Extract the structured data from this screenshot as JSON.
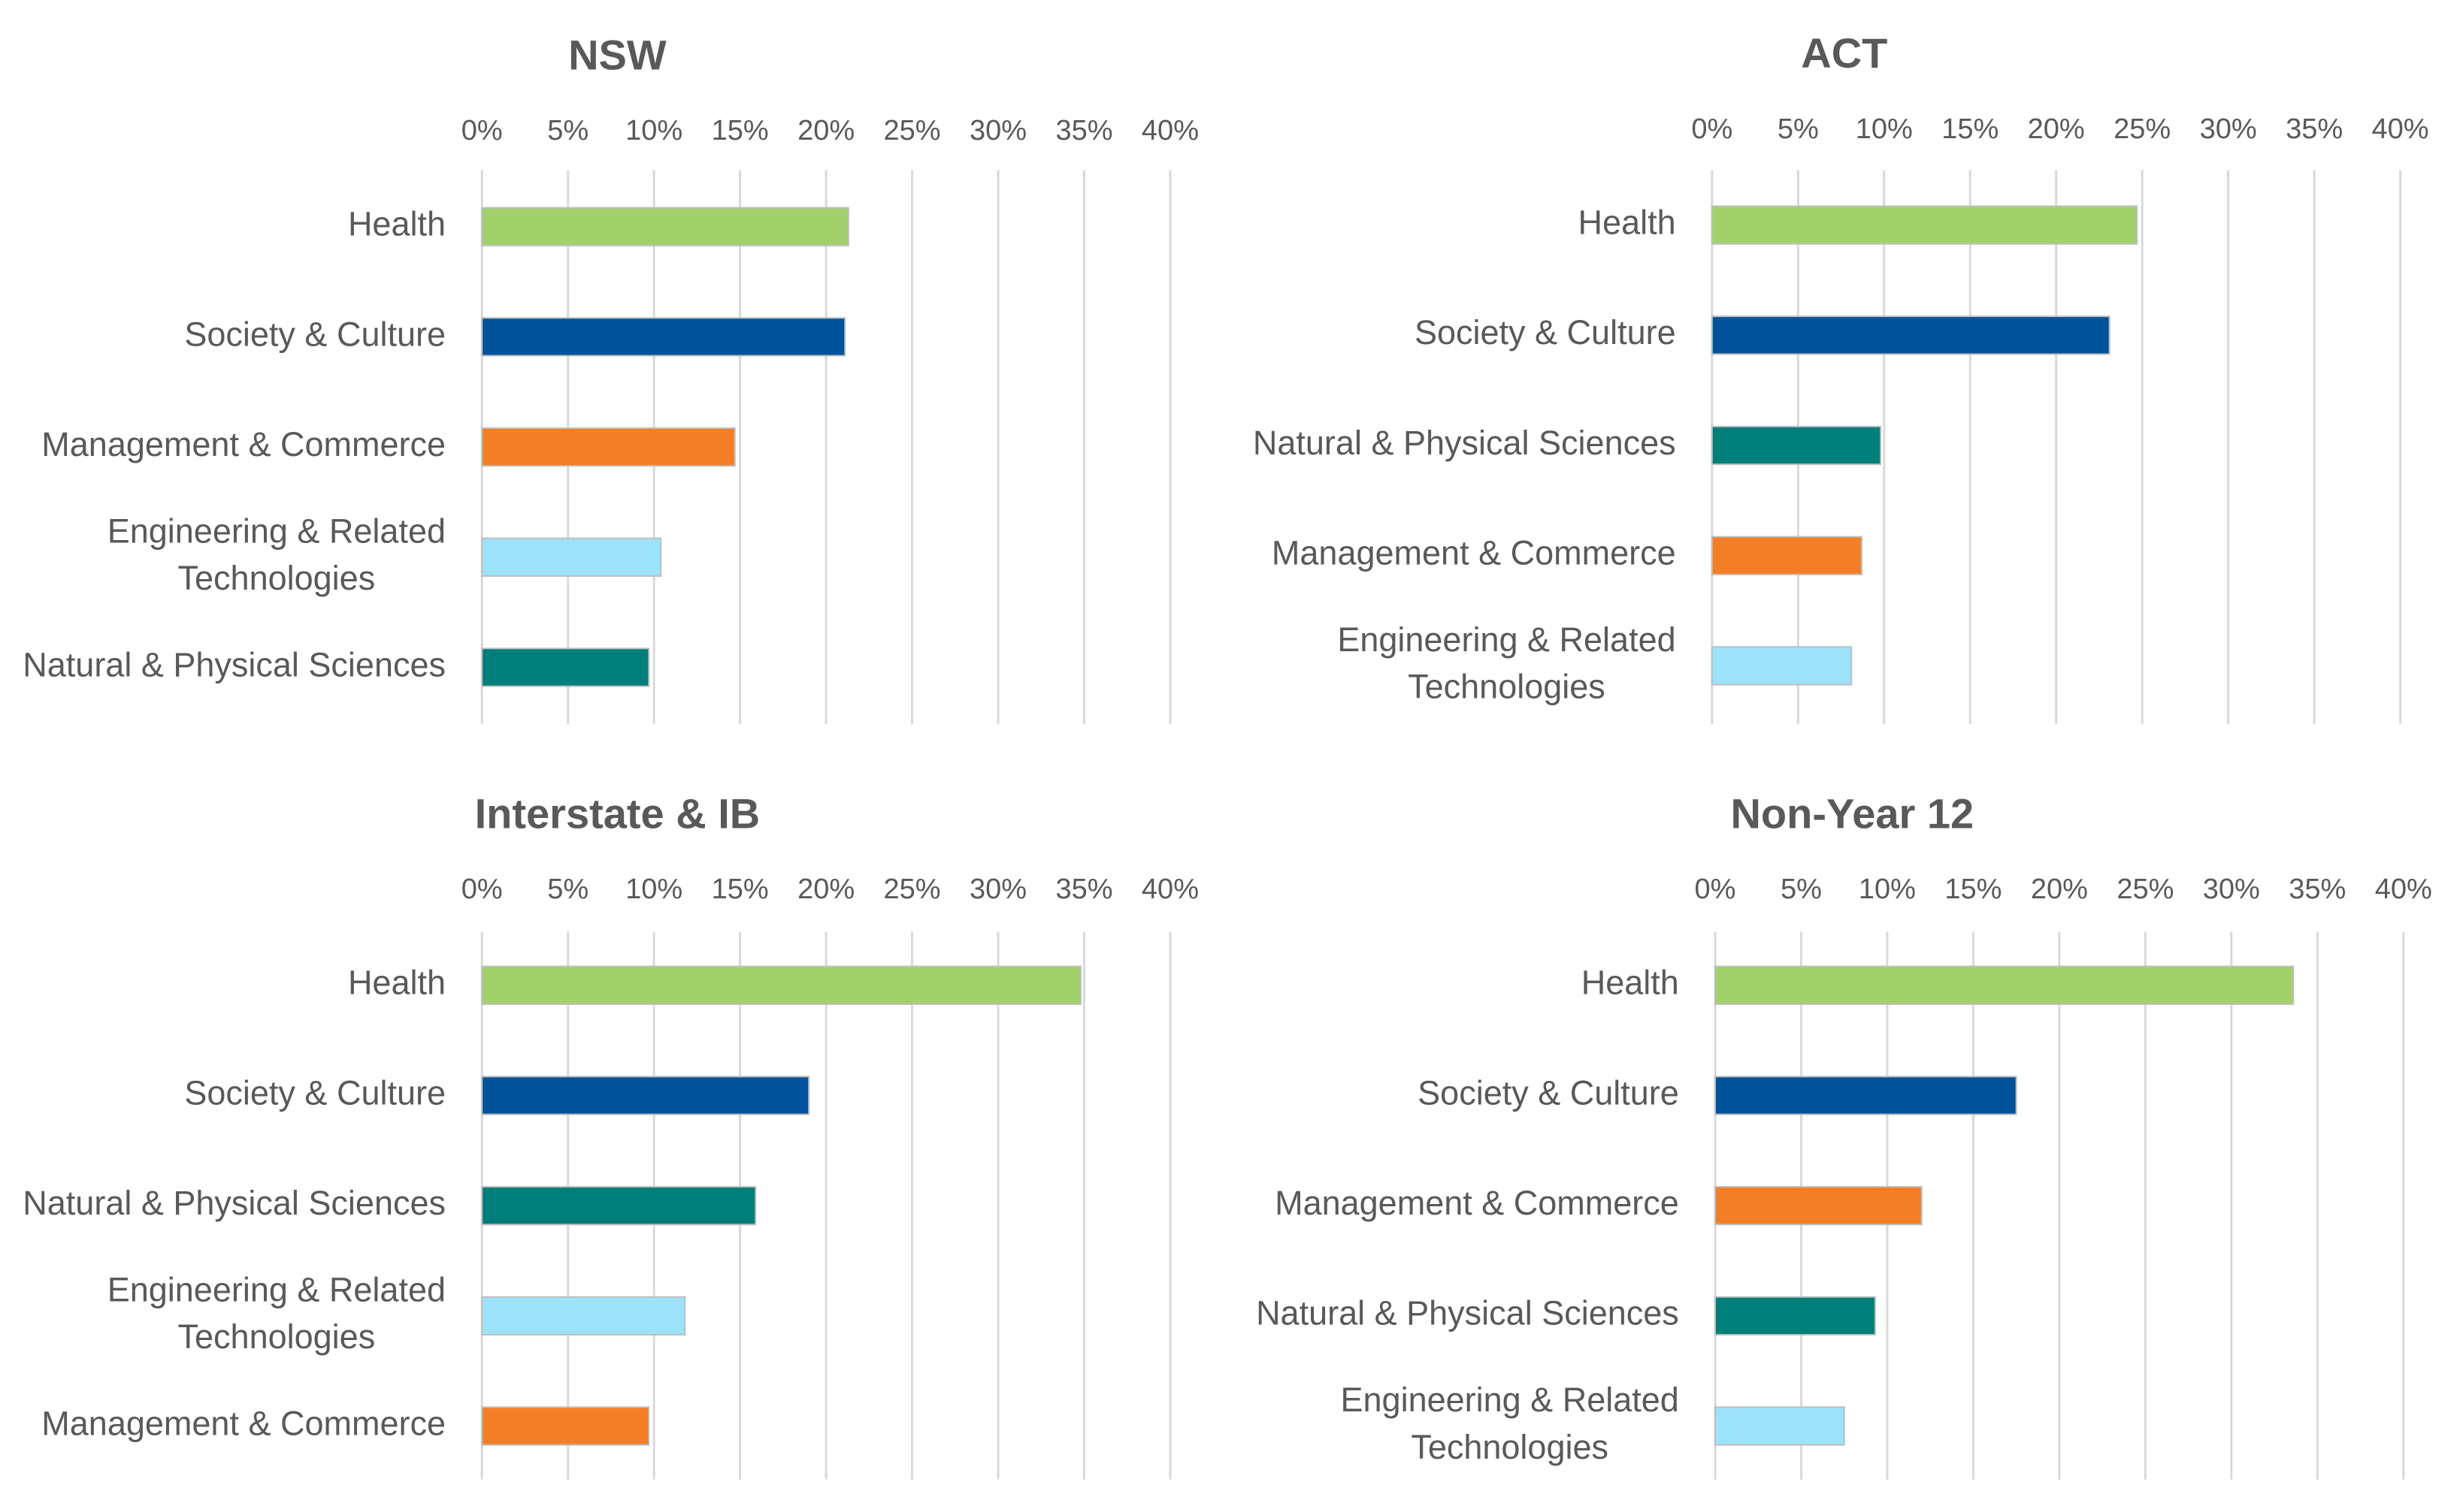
{
  "chart_data": [
    {
      "type": "bar",
      "orientation": "horizontal",
      "title": "NSW",
      "categories": [
        "Health",
        "Society & Culture",
        "Management & Commerce",
        "Engineering & Related Technologies",
        "Natural & Physical Sciences"
      ],
      "category_lines": [
        [
          "Health"
        ],
        [
          "Society & Culture"
        ],
        [
          "Management & Commerce"
        ],
        [
          "Engineering & Related",
          "Technologies"
        ],
        [
          "Natural & Physical Sciences"
        ]
      ],
      "values": [
        21.3,
        21.1,
        14.7,
        10.4,
        9.7
      ],
      "bar_colors": [
        "#a2d16c",
        "#00529b",
        "#f47e26",
        "#9ce2fb",
        "#007e7a"
      ],
      "xlim": [
        0,
        40
      ],
      "xticks": [
        "0%",
        "5%",
        "10%",
        "15%",
        "20%",
        "25%",
        "30%",
        "35%",
        "40%"
      ],
      "axis_position": "top",
      "grid": true,
      "legend": false
    },
    {
      "type": "bar",
      "orientation": "horizontal",
      "title": "ACT",
      "categories": [
        "Health",
        "Society & Culture",
        "Natural & Physical Sciences",
        "Management & Commerce",
        "Engineering & Related Technologies"
      ],
      "category_lines": [
        [
          "Health"
        ],
        [
          "Society & Culture"
        ],
        [
          "Natural & Physical Sciences"
        ],
        [
          "Management & Commerce"
        ],
        [
          "Engineering & Related",
          "Technologies"
        ]
      ],
      "values": [
        24.7,
        23.1,
        9.8,
        8.7,
        8.1
      ],
      "bar_colors": [
        "#a2d16c",
        "#00529b",
        "#007e7a",
        "#f47e26",
        "#9ce2fb"
      ],
      "xlim": [
        0,
        40
      ],
      "xticks": [
        "0%",
        "5%",
        "10%",
        "15%",
        "20%",
        "25%",
        "30%",
        "35%",
        "40%"
      ],
      "axis_position": "top",
      "grid": true,
      "legend": false
    },
    {
      "type": "bar",
      "orientation": "horizontal",
      "title": "Interstate & IB",
      "categories": [
        "Health",
        "Society & Culture",
        "Natural & Physical Sciences",
        "Engineering & Related Technologies",
        "Management & Commerce"
      ],
      "category_lines": [
        [
          "Health"
        ],
        [
          "Society & Culture"
        ],
        [
          "Natural & Physical Sciences"
        ],
        [
          "Engineering & Related",
          "Technologies"
        ],
        [
          "Management & Commerce"
        ]
      ],
      "values": [
        34.8,
        19.0,
        15.9,
        11.8,
        9.7
      ],
      "bar_colors": [
        "#a2d16c",
        "#00529b",
        "#007e7a",
        "#9ce2fb",
        "#f47e26"
      ],
      "xlim": [
        0,
        40
      ],
      "xticks": [
        "0%",
        "5%",
        "10%",
        "15%",
        "20%",
        "25%",
        "30%",
        "35%",
        "40%"
      ],
      "axis_position": "top",
      "grid": true,
      "legend": false
    },
    {
      "type": "bar",
      "orientation": "horizontal",
      "title": "Non-Year 12",
      "categories": [
        "Health",
        "Society & Culture",
        "Management & Commerce",
        "Natural & Physical Sciences",
        "Engineering & Related Technologies"
      ],
      "category_lines": [
        [
          "Health"
        ],
        [
          "Society & Culture"
        ],
        [
          "Management & Commerce"
        ],
        [
          "Natural & Physical Sciences"
        ],
        [
          "Engineering & Related",
          "Technologies"
        ]
      ],
      "values": [
        33.6,
        17.5,
        12.0,
        9.3,
        7.5
      ],
      "bar_colors": [
        "#a2d16c",
        "#00529b",
        "#f47e26",
        "#007e7a",
        "#9ce2fb"
      ],
      "xlim": [
        0,
        40
      ],
      "xticks": [
        "0%",
        "5%",
        "10%",
        "15%",
        "20%",
        "25%",
        "30%",
        "35%",
        "40%"
      ],
      "axis_position": "top",
      "grid": true,
      "legend": false
    }
  ],
  "colors": {
    "text": "#595959",
    "title": "#595959",
    "gridline": "#d9d9d9",
    "bar_outline": "#bfbfbf",
    "background": "#ffffff"
  }
}
